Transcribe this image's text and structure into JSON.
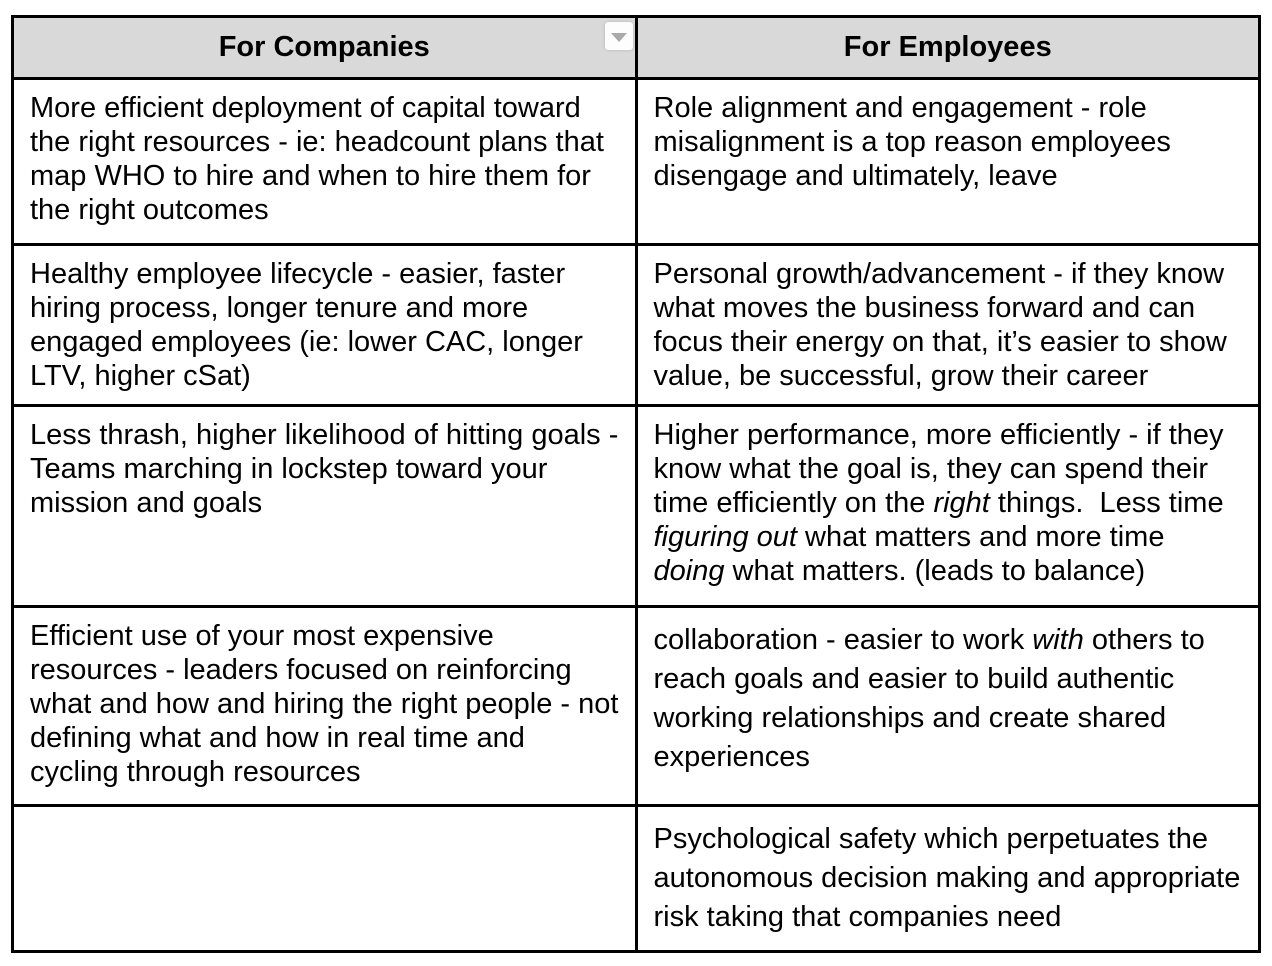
{
  "colors": {
    "header_background": "#d9d9d9",
    "table_border": "#000000",
    "text": "#000000",
    "dropdown_arrow": "#a9a9a9",
    "dropdown_button_background": "#fdfdfd"
  },
  "icons": {
    "chevron_down": "▼"
  },
  "table": {
    "headers": [
      "For Companies",
      "For Employees"
    ],
    "rows": [
      {
        "company": [
          {
            "text": "More efficient deployment of capital toward the right resources - ie: headcount plans that map WHO to hire and when to hire them for the right outcomes"
          }
        ],
        "employee": [
          {
            "text": "Role alignment and engagement - role misalignment is a top reason employees disengage and ultimately, leave"
          }
        ]
      },
      {
        "company": [
          {
            "text": "Healthy employee lifecycle - easier, faster hiring process, longer tenure and more engaged employees (ie: lower CAC, longer LTV, higher cSat)"
          }
        ],
        "employee": [
          {
            "text": "Personal growth/advancement - if they know what moves the business forward and can focus their energy on that, it’s easier to show value, be successful, grow their career"
          }
        ]
      },
      {
        "company": [
          {
            "text": "Less thrash, higher likelihood of hitting goals - Teams marching in lockstep toward your mission and goals"
          }
        ],
        "employee": [
          {
            "text": "Higher performance, more efficiently - if they know what the goal is, they can spend their time efficiently on the "
          },
          {
            "text": "right",
            "italic": true
          },
          {
            "text": " things.  Less time "
          },
          {
            "text": "figuring out",
            "italic": true
          },
          {
            "text": " what matters and more time "
          },
          {
            "text": "doing",
            "italic": true
          },
          {
            "text": " what matters. (leads to balance)"
          }
        ]
      },
      {
        "company": [
          {
            "text": "Efficient use of your most expensive resources - leaders focused on reinforcing what and how and hiring the right people - not defining what and how in real time and cycling through resources"
          }
        ],
        "employee": [
          {
            "text": "collaboration - easier to work "
          },
          {
            "text": "with",
            "italic": true
          },
          {
            "text": " others to reach goals and easier to build authentic working relationships and create shared experiences"
          }
        ]
      },
      {
        "company": [],
        "employee": [
          {
            "text": "Psychological safety which perpetuates the autonomous decision making and appropriate risk taking that companies need"
          }
        ]
      }
    ]
  }
}
